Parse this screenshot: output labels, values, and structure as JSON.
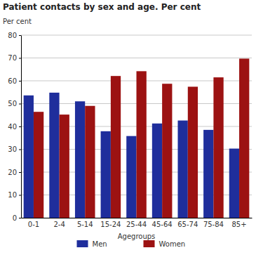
{
  "chart_data": {
    "type": "bar",
    "title": "Patient contacts by sex and age. Per cent",
    "y_label": "Per cent",
    "x_label": "Agegroups",
    "categories": [
      "0-1",
      "2-4",
      "5-14",
      "15-24",
      "25-44",
      "45-64",
      "65-74",
      "75-84",
      "85+"
    ],
    "series": [
      {
        "name": "Men",
        "color": "#1f2e9c",
        "values": [
          53.6,
          54.8,
          51.0,
          37.9,
          35.8,
          41.3,
          42.6,
          38.5,
          30.3
        ]
      },
      {
        "name": "Women",
        "color": "#9c1212",
        "values": [
          46.4,
          45.2,
          49.0,
          62.1,
          64.2,
          58.7,
          57.4,
          61.5,
          69.7
        ]
      }
    ],
    "ylim": [
      0,
      80
    ],
    "yticks": [
      0,
      10,
      20,
      30,
      40,
      50,
      60,
      70,
      80
    ],
    "grid": true,
    "legend": "bottom"
  }
}
